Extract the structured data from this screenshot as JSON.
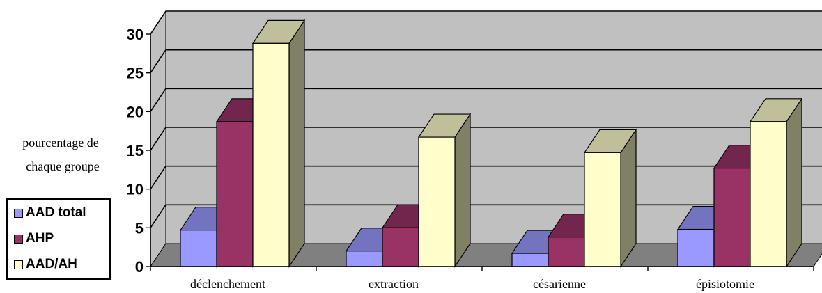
{
  "chart_data": {
    "type": "bar",
    "ylabel": [
      "pourcentage de",
      "chaque groupe"
    ],
    "categories": [
      "déclenchement",
      "extraction",
      "césarienne",
      "épisiotomie"
    ],
    "series": [
      {
        "name": "AAD total",
        "values": [
          4.7,
          2.0,
          1.7,
          4.8
        ],
        "color": "#9999ff"
      },
      {
        "name": "AHP",
        "values": [
          18.7,
          5.0,
          3.8,
          12.7
        ],
        "color": "#993366"
      },
      {
        "name": "AAD/AH",
        "values": [
          28.8,
          16.7,
          14.7,
          18.7
        ],
        "color": "#ffffcc"
      }
    ],
    "ylim": [
      0,
      30
    ],
    "yticks": [
      0,
      5,
      10,
      15,
      20,
      25,
      30
    ],
    "grid": true,
    "legend_position": "bottom-left",
    "wall_color": "#c0c0c0",
    "floor_color": "#808080"
  }
}
